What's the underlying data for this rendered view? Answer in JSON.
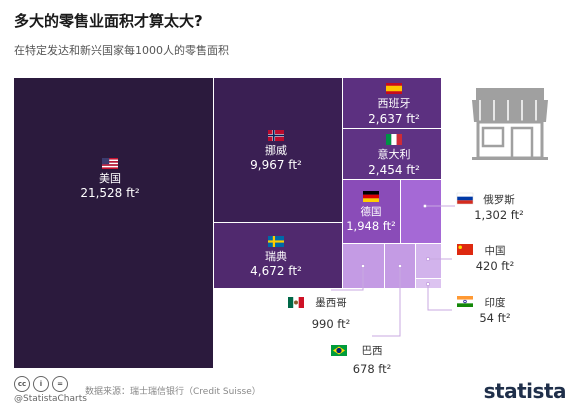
{
  "title": "多大的零售业面积才算太大?",
  "subtitle": "在特定发达和新兴国家每1000人的零售面积",
  "footer": {
    "cc_icons": [
      "cc",
      "i",
      "="
    ],
    "handle": "@StatistaCharts",
    "source": "数据来源：瑞士瑞信银行（Credit Suisse）",
    "brand": "statista"
  },
  "colors": {
    "usa": "#2b1a3d",
    "norway": "#3a1f53",
    "sweden": "#50296e",
    "spain": "#5c3080",
    "italy": "#5f3384",
    "germany": "#8a4cb8",
    "russia": "#a569d6",
    "small": "#c49be4",
    "icon": "#a0a0a0",
    "leader": "#c8a8e0"
  },
  "chart_data": {
    "type": "treemap",
    "unit": "ft²",
    "items": [
      {
        "country": "美国",
        "value": 21528,
        "label": "21,528 ft²",
        "flag": "flag-usa"
      },
      {
        "country": "挪威",
        "value": 9967,
        "label": "9,967 ft²",
        "flag": "flag-norway"
      },
      {
        "country": "瑞典",
        "value": 4672,
        "label": "4,672 ft²",
        "flag": "flag-sweden"
      },
      {
        "country": "西班牙",
        "value": 2637,
        "label": "2,637 ft²",
        "flag": "flag-spain"
      },
      {
        "country": "意大利",
        "value": 2454,
        "label": "2,454 ft²",
        "flag": "flag-italy"
      },
      {
        "country": "德国",
        "value": 1948,
        "label": "1,948 ft²",
        "flag": "flag-germany"
      },
      {
        "country": "俄罗斯",
        "value": 1302,
        "label": "1,302 ft²",
        "flag": "flag-russia"
      },
      {
        "country": "墨西哥",
        "value": 990,
        "label": "990 ft²",
        "flag": "flag-mexico"
      },
      {
        "country": "巴西",
        "value": 678,
        "label": "678 ft²",
        "flag": "flag-brazil"
      },
      {
        "country": "中国",
        "value": 420,
        "label": "420 ft²",
        "flag": "flag-china"
      },
      {
        "country": "印度",
        "value": 54,
        "label": "54 ft²",
        "flag": "flag-india"
      }
    ]
  }
}
